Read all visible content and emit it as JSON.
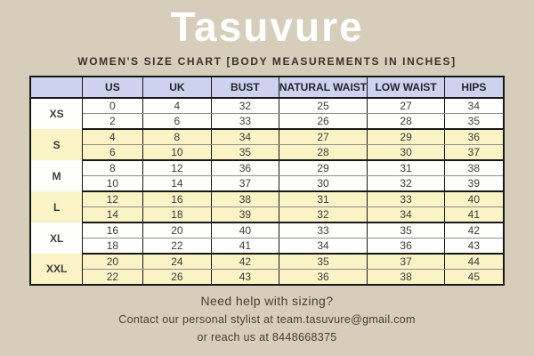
{
  "colors": {
    "page_background": "#d7cdbb",
    "title_color": "#ffffff",
    "header_row_background": "#cdd3ee",
    "band_yellow": "#faf3c6",
    "band_white": "#fefefc",
    "table_border": "#171717",
    "footer_text": "#48402f"
  },
  "header": {
    "brand": "Tasuvure",
    "subtitle": "WOMEN'S SIZE CHART [BODY MEASUREMENTS IN INCHES]"
  },
  "size_chart": {
    "columns": [
      "",
      "US",
      "UK",
      "BUST",
      "NATURAL WAIST",
      "LOW WAIST",
      "HIPS"
    ],
    "groups": [
      {
        "size": "XS",
        "shade": "white",
        "rows": [
          [
            "0",
            "4",
            "32",
            "25",
            "27",
            "34"
          ],
          [
            "2",
            "6",
            "33",
            "26",
            "28",
            "35"
          ]
        ]
      },
      {
        "size": "S",
        "shade": "yellow",
        "rows": [
          [
            "4",
            "8",
            "34",
            "27",
            "29",
            "36"
          ],
          [
            "6",
            "10",
            "35",
            "28",
            "30",
            "37"
          ]
        ]
      },
      {
        "size": "M",
        "shade": "white",
        "rows": [
          [
            "8",
            "12",
            "36",
            "29",
            "31",
            "38"
          ],
          [
            "10",
            "14",
            "37",
            "30",
            "32",
            "39"
          ]
        ]
      },
      {
        "size": "L",
        "shade": "yellow",
        "rows": [
          [
            "12",
            "16",
            "38",
            "31",
            "33",
            "40"
          ],
          [
            "14",
            "18",
            "39",
            "32",
            "34",
            "41"
          ]
        ]
      },
      {
        "size": "XL",
        "shade": "white",
        "rows": [
          [
            "16",
            "20",
            "40",
            "33",
            "35",
            "42"
          ],
          [
            "18",
            "22",
            "41",
            "34",
            "36",
            "43"
          ]
        ]
      },
      {
        "size": "XXL",
        "shade": "yellow",
        "rows": [
          [
            "20",
            "24",
            "42",
            "35",
            "37",
            "44"
          ],
          [
            "22",
            "26",
            "43",
            "36",
            "38",
            "45"
          ]
        ]
      }
    ]
  },
  "footer": {
    "line1": "Need help with sizing?",
    "line2": "Contact our personal stylist at team.tasuvure@gmail.com",
    "line3": "or reach us at 8448668375"
  }
}
